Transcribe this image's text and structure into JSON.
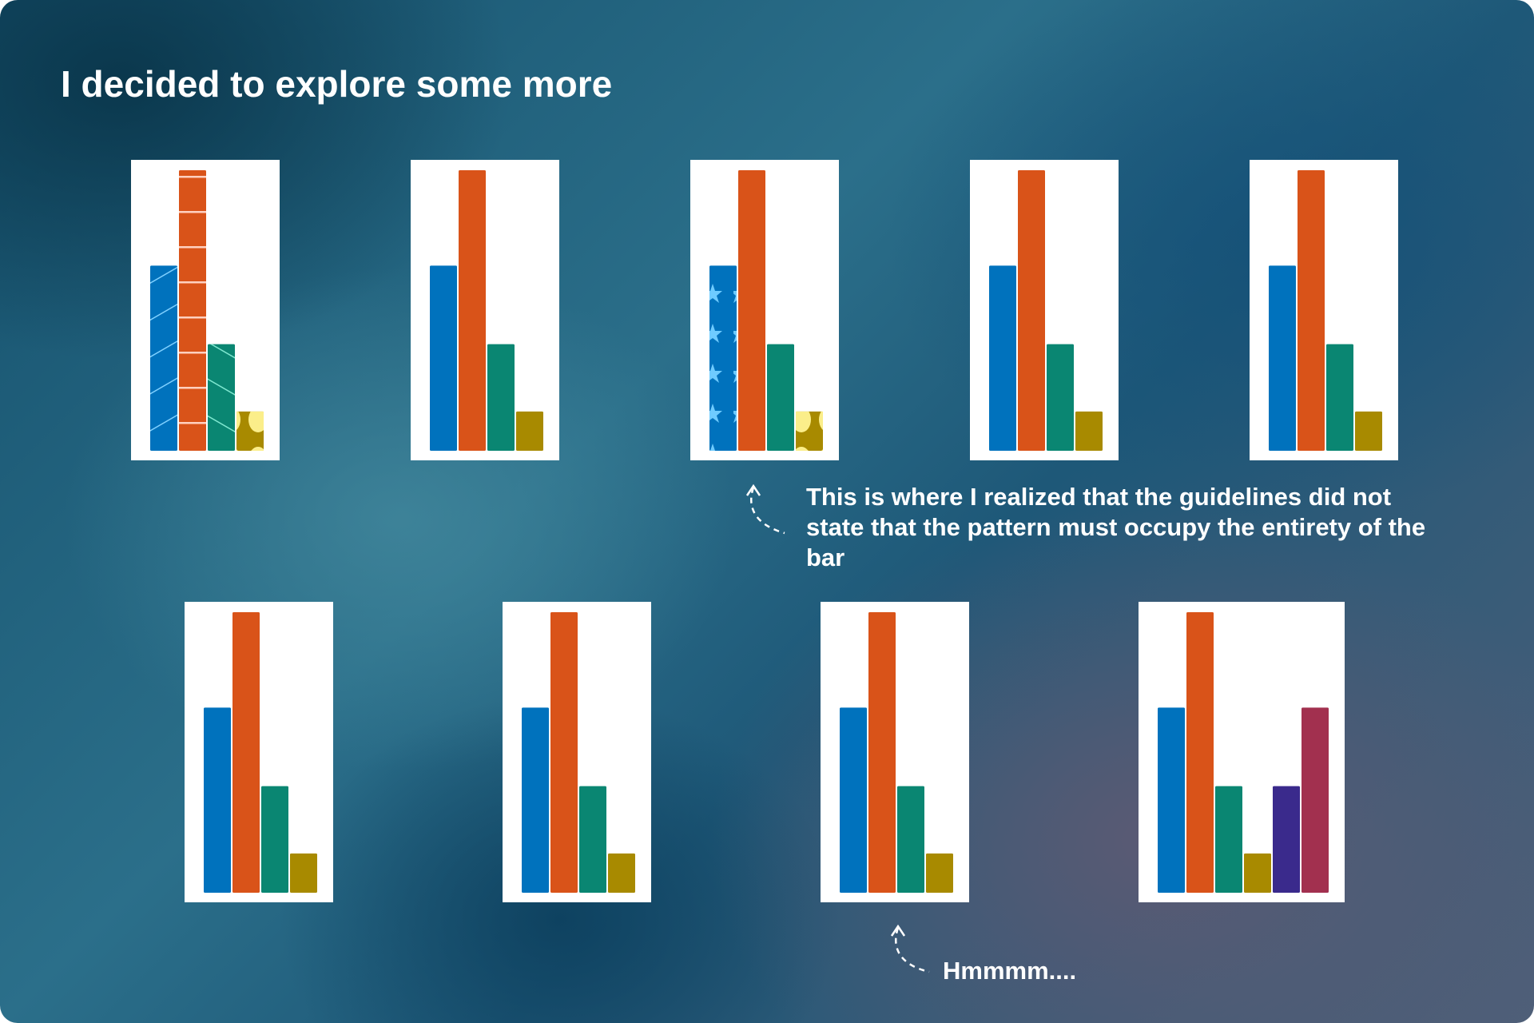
{
  "title": "I decided to explore some more",
  "annotations": [
    "This is where I realized that the guidelines did not state that the pattern must occupy the entirety of the bar",
    "Hmmmm...."
  ],
  "chart_data": [
    {
      "type": "bar",
      "values": [
        66,
        100,
        38,
        14
      ],
      "colors": [
        "#0072bd",
        "#d95319",
        "#0a8672",
        "#a88a00"
      ]
    },
    {
      "type": "bar",
      "values": [
        66,
        100,
        38,
        14
      ],
      "colors": [
        "#0072bd",
        "#d95319",
        "#0a8672",
        "#a88a00"
      ]
    },
    {
      "type": "bar",
      "values": [
        66,
        100,
        38,
        14
      ],
      "colors": [
        "#0072bd",
        "#d95319",
        "#0a8672",
        "#a88a00"
      ]
    },
    {
      "type": "bar",
      "values": [
        66,
        100,
        38,
        14
      ],
      "colors": [
        "#0072bd",
        "#d95319",
        "#0a8672",
        "#a88a00"
      ]
    },
    {
      "type": "bar",
      "values": [
        66,
        100,
        38,
        14
      ],
      "colors": [
        "#0072bd",
        "#d95319",
        "#0a8672",
        "#a88a00"
      ]
    },
    {
      "type": "bar",
      "values": [
        66,
        100,
        38,
        14
      ],
      "colors": [
        "#0072bd",
        "#d95319",
        "#0a8672",
        "#a88a00"
      ]
    },
    {
      "type": "bar",
      "values": [
        66,
        100,
        38,
        14
      ],
      "colors": [
        "#0072bd",
        "#d95319",
        "#0a8672",
        "#a88a00"
      ]
    },
    {
      "type": "bar",
      "values": [
        66,
        100,
        38,
        14
      ],
      "colors": [
        "#0072bd",
        "#d95319",
        "#0a8672",
        "#a88a00"
      ]
    },
    {
      "type": "bar",
      "values": [
        66,
        100,
        38,
        14,
        38,
        66
      ],
      "colors": [
        "#0072bd",
        "#d95319",
        "#0a8672",
        "#a88a00",
        "#3a2a8c",
        "#a2304f"
      ]
    }
  ]
}
